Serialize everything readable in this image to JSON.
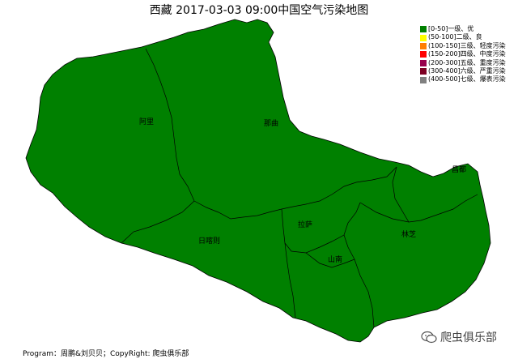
{
  "title": "西藏 2017-03-03 09:00中国空气污染地图",
  "legend": [
    {
      "label": "[0-50]一级、优",
      "color": "#008000"
    },
    {
      "label": "(50-100]二级、良",
      "color": "#ffff00"
    },
    {
      "label": "(100-150]三级、轻度污染",
      "color": "#ff7e00"
    },
    {
      "label": "(150-200]四级、中度污染",
      "color": "#ff0000"
    },
    {
      "label": "(200-300]五级、重度污染",
      "color": "#99004c"
    },
    {
      "label": "(300-400]六级、严重污染",
      "color": "#7e0023"
    },
    {
      "label": "(400-500]七级、爆表污染",
      "color": "#808080"
    }
  ],
  "regions": [
    {
      "name": "阿里",
      "fill": "#008000"
    },
    {
      "name": "那曲",
      "fill": "#008000"
    },
    {
      "name": "昌都",
      "fill": "#008000"
    },
    {
      "name": "拉萨",
      "fill": "#008000"
    },
    {
      "name": "日喀则",
      "fill": "#008000"
    },
    {
      "name": "林芝",
      "fill": "#008000"
    },
    {
      "name": "山南",
      "fill": "#008000"
    }
  ],
  "footer": "Program：周鹏&刘贝贝；CopyRight: 爬虫俱乐部",
  "watermark": "爬虫俱乐部",
  "icons": {
    "watermark_icon": "wechat-icon"
  }
}
